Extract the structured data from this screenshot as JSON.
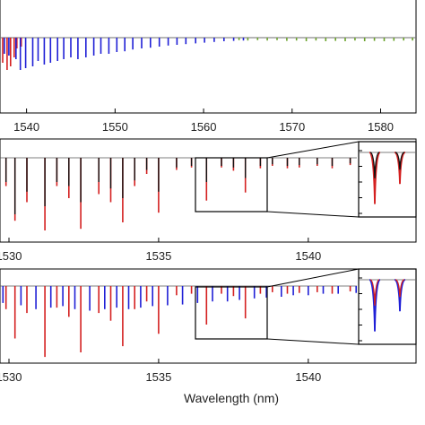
{
  "colors": {
    "blue": "#1f1fd6",
    "red": "#d42020",
    "green": "#6aa32a",
    "black": "#111111",
    "frame": "#000000"
  },
  "chart_data": [
    {
      "type": "line",
      "panel": "top",
      "xlim": [
        1537,
        1584
      ],
      "x_ticks": [
        "1540",
        "1550",
        "1560",
        "1570",
        "1580"
      ],
      "x_tick_values": [
        1540,
        1550,
        1560,
        1570,
        1580
      ],
      "xlabel": "",
      "series": [
        {
          "color": "red",
          "dips": [
            [
              1537.3,
              0.7
            ],
            [
              1537.8,
              0.9
            ],
            [
              1538.2,
              0.8
            ],
            [
              1538.6,
              0.55
            ],
            [
              1538.9,
              0.3
            ],
            [
              1539.4,
              0.25
            ]
          ]
        },
        {
          "color": "blue",
          "dips": [
            [
              1537.5,
              0.45
            ],
            [
              1538.0,
              0.5
            ],
            [
              1538.8,
              0.6
            ],
            [
              1539.3,
              0.9
            ],
            [
              1539.9,
              0.85
            ],
            [
              1540.7,
              0.8
            ],
            [
              1541.3,
              0.65
            ],
            [
              1542.0,
              0.75
            ],
            [
              1542.7,
              0.7
            ],
            [
              1543.5,
              0.65
            ],
            [
              1544.2,
              0.6
            ],
            [
              1545.0,
              0.55
            ],
            [
              1545.8,
              0.6
            ],
            [
              1546.7,
              0.55
            ],
            [
              1547.6,
              0.5
            ],
            [
              1548.4,
              0.45
            ],
            [
              1549.3,
              0.45
            ],
            [
              1550.2,
              0.4
            ],
            [
              1551.1,
              0.38
            ],
            [
              1552.0,
              0.33
            ],
            [
              1553.0,
              0.3
            ],
            [
              1554.0,
              0.28
            ],
            [
              1555.0,
              0.25
            ],
            [
              1556.0,
              0.22
            ],
            [
              1557.0,
              0.2
            ],
            [
              1558.0,
              0.18
            ],
            [
              1559.1,
              0.16
            ],
            [
              1560.1,
              0.14
            ],
            [
              1561.2,
              0.12
            ],
            [
              1562.3,
              0.1
            ],
            [
              1563.4,
              0.09
            ],
            [
              1564.5,
              0.08
            ]
          ]
        },
        {
          "color": "green",
          "dips": [
            [
              1564.0,
              0.07
            ],
            [
              1565.0,
              0.08
            ],
            [
              1566.1,
              0.07
            ],
            [
              1567.2,
              0.08
            ],
            [
              1568.3,
              0.07
            ],
            [
              1569.4,
              0.09
            ],
            [
              1570.5,
              0.08
            ],
            [
              1571.6,
              0.1
            ],
            [
              1572.7,
              0.08
            ],
            [
              1573.8,
              0.1
            ],
            [
              1574.9,
              0.09
            ],
            [
              1576.0,
              0.1
            ],
            [
              1577.1,
              0.08
            ],
            [
              1578.2,
              0.1
            ],
            [
              1579.3,
              0.09
            ],
            [
              1580.4,
              0.1
            ],
            [
              1581.5,
              0.09
            ],
            [
              1582.6,
              0.08
            ],
            [
              1583.6,
              0.08
            ]
          ]
        }
      ]
    },
    {
      "type": "line",
      "panel": "middle",
      "xlim": [
        1529.7,
        1543.6
      ],
      "x_ticks": [
        "1530",
        "1535",
        "1540"
      ],
      "x_tick_values": [
        1530,
        1535,
        1540
      ],
      "xlabel": "",
      "series": [
        {
          "color": "red",
          "dips": [
            [
              1529.9,
              0.35
            ],
            [
              1530.2,
              0.78
            ],
            [
              1530.6,
              0.55
            ],
            [
              1531.2,
              0.9
            ],
            [
              1531.6,
              0.35
            ],
            [
              1532.0,
              0.5
            ],
            [
              1532.4,
              0.88
            ],
            [
              1533.0,
              0.45
            ],
            [
              1533.4,
              0.55
            ],
            [
              1533.8,
              0.8
            ],
            [
              1534.2,
              0.35
            ],
            [
              1534.6,
              0.2
            ],
            [
              1535.0,
              0.68
            ],
            [
              1535.6,
              0.15
            ],
            [
              1536.1,
              0.12
            ],
            [
              1536.6,
              0.53
            ],
            [
              1537.1,
              0.12
            ],
            [
              1537.5,
              0.16
            ],
            [
              1537.9,
              0.43
            ],
            [
              1538.4,
              0.13
            ],
            [
              1538.8,
              0.1
            ],
            [
              1539.3,
              0.13
            ],
            [
              1539.7,
              0.12
            ],
            [
              1540.3,
              0.1
            ],
            [
              1540.8,
              0.13
            ],
            [
              1541.4,
              0.09
            ]
          ]
        },
        {
          "color": "black",
          "dips": [
            [
              1529.9,
              0.3
            ],
            [
              1530.2,
              0.7
            ],
            [
              1530.6,
              0.42
            ],
            [
              1531.2,
              0.6
            ],
            [
              1531.6,
              0.3
            ],
            [
              1532.0,
              0.35
            ],
            [
              1532.4,
              0.55
            ],
            [
              1533.0,
              0.3
            ],
            [
              1533.4,
              0.38
            ],
            [
              1533.8,
              0.5
            ],
            [
              1534.2,
              0.28
            ],
            [
              1534.6,
              0.15
            ],
            [
              1535.0,
              0.42
            ],
            [
              1535.6,
              0.12
            ],
            [
              1536.1,
              0.1
            ],
            [
              1536.6,
              0.3
            ],
            [
              1537.1,
              0.1
            ],
            [
              1537.5,
              0.12
            ],
            [
              1537.9,
              0.25
            ],
            [
              1538.4,
              0.1
            ],
            [
              1538.8,
              0.08
            ],
            [
              1539.3,
              0.1
            ],
            [
              1539.7,
              0.09
            ],
            [
              1540.3,
              0.08
            ],
            [
              1540.8,
              0.1
            ],
            [
              1541.4,
              0.07
            ]
          ]
        }
      ]
    },
    {
      "type": "line",
      "panel": "bottom",
      "xlim": [
        1529.7,
        1543.6
      ],
      "x_ticks": [
        "1530",
        "1535",
        "1540"
      ],
      "x_tick_values": [
        1530,
        1535,
        1540
      ],
      "xlabel": "Wavelength (nm)",
      "series": [
        {
          "color": "red",
          "dips": [
            [
              1529.9,
              0.3
            ],
            [
              1530.2,
              0.68
            ],
            [
              1530.6,
              0.35
            ],
            [
              1531.2,
              0.92
            ],
            [
              1531.6,
              0.28
            ],
            [
              1532.0,
              0.4
            ],
            [
              1532.4,
              0.86
            ],
            [
              1533.0,
              0.35
            ],
            [
              1533.4,
              0.45
            ],
            [
              1533.8,
              0.78
            ],
            [
              1534.2,
              0.3
            ],
            [
              1534.6,
              0.2
            ],
            [
              1535.0,
              0.62
            ],
            [
              1535.6,
              0.12
            ],
            [
              1536.1,
              0.1
            ],
            [
              1536.6,
              0.5
            ],
            [
              1537.1,
              0.1
            ],
            [
              1537.5,
              0.13
            ],
            [
              1537.9,
              0.42
            ],
            [
              1538.4,
              0.1
            ],
            [
              1538.8,
              0.08
            ],
            [
              1539.3,
              0.1
            ],
            [
              1539.7,
              0.09
            ],
            [
              1540.3,
              0.08
            ],
            [
              1540.8,
              0.1
            ],
            [
              1541.4,
              0.07
            ]
          ]
        },
        {
          "color": "blue",
          "dips": [
            [
              1529.8,
              0.22
            ],
            [
              1530.4,
              0.25
            ],
            [
              1530.9,
              0.3
            ],
            [
              1531.4,
              0.28
            ],
            [
              1531.8,
              0.26
            ],
            [
              1532.2,
              0.3
            ],
            [
              1532.7,
              0.32
            ],
            [
              1533.2,
              0.3
            ],
            [
              1533.6,
              0.28
            ],
            [
              1534.0,
              0.3
            ],
            [
              1534.4,
              0.28
            ],
            [
              1534.8,
              0.26
            ],
            [
              1535.3,
              0.25
            ],
            [
              1535.8,
              0.24
            ],
            [
              1536.3,
              0.22
            ],
            [
              1536.8,
              0.2
            ],
            [
              1537.3,
              0.2
            ],
            [
              1537.7,
              0.18
            ],
            [
              1538.2,
              0.16
            ],
            [
              1538.6,
              0.15
            ],
            [
              1539.1,
              0.14
            ],
            [
              1539.5,
              0.12
            ],
            [
              1540.0,
              0.12
            ],
            [
              1540.5,
              0.1
            ],
            [
              1541.0,
              0.1
            ],
            [
              1541.6,
              0.09
            ],
            [
              1542.1,
              0.08
            ],
            [
              1542.6,
              0.07
            ]
          ]
        }
      ]
    }
  ]
}
